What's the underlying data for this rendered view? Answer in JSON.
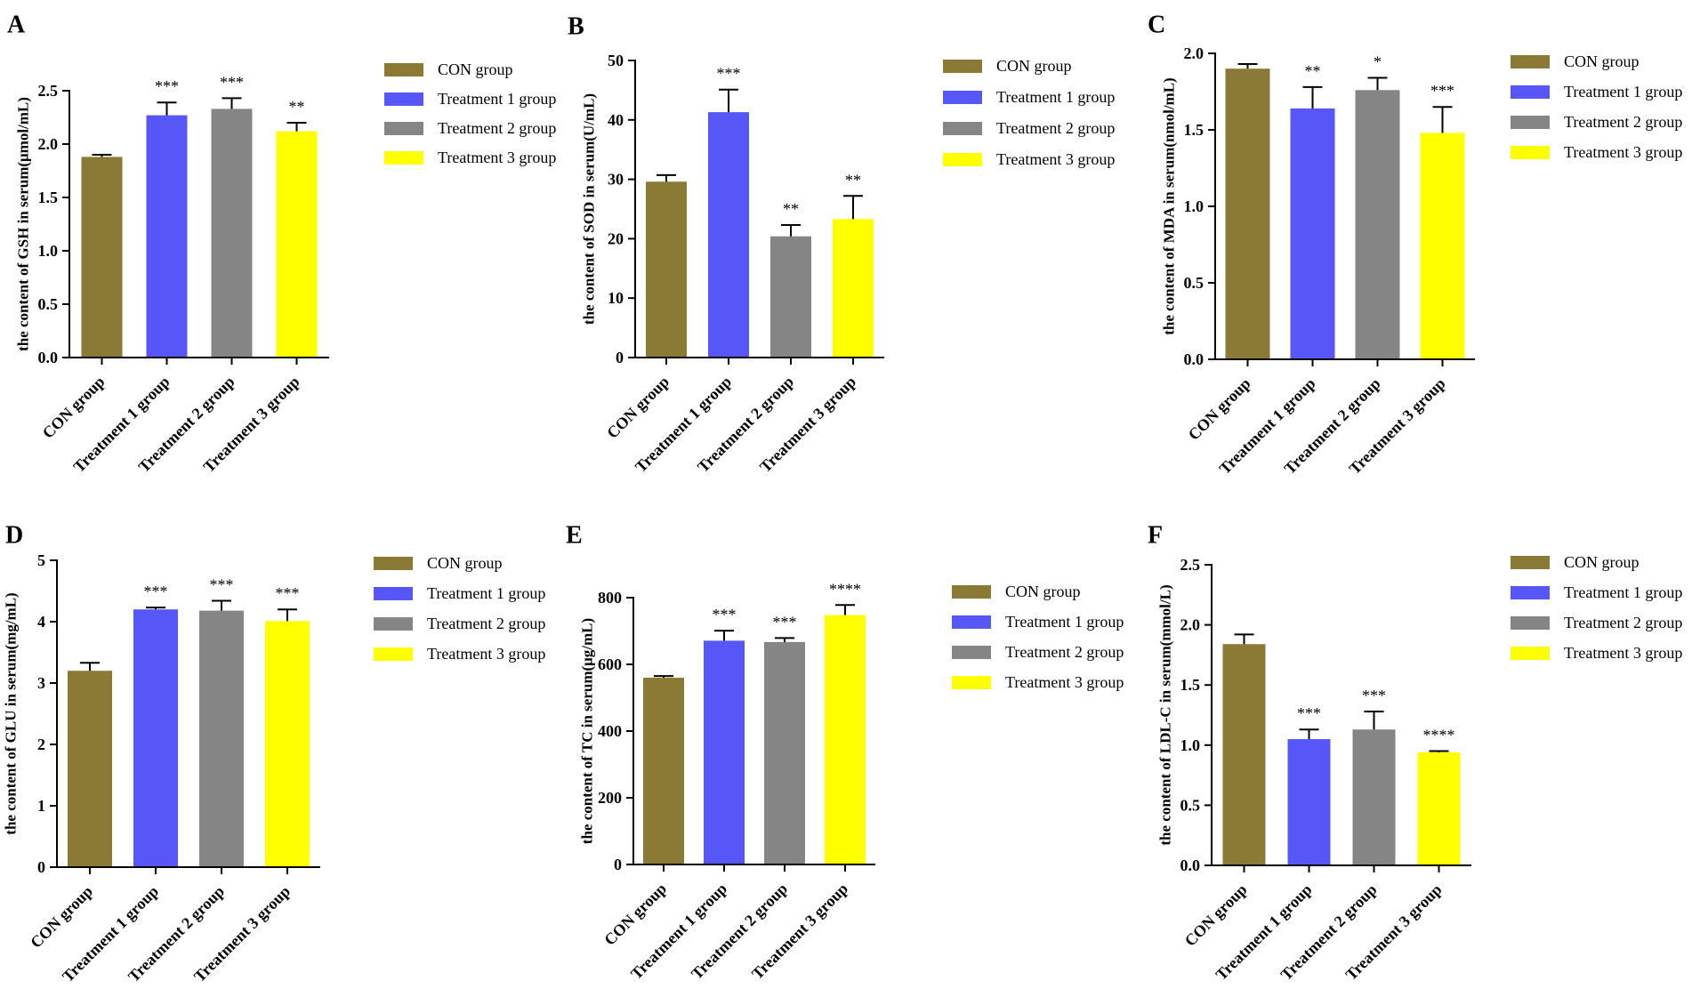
{
  "colors": {
    "con": "#8B7A36",
    "t1": "#5757F8",
    "t2": "#858585",
    "t3": "#FFFF00",
    "axis": "#000000"
  },
  "group_colors": [
    "#8B7A36",
    "#5757F8",
    "#858585",
    "#FFFF00"
  ],
  "chart_data": [
    {
      "type": "bar",
      "panel_label": "A",
      "ylabel": "the content of GSH in serum(μmol/mL)",
      "categories": [
        "CON group",
        "Treatment 1 group",
        "Treatment 2 group",
        "Treatment 3 group"
      ],
      "values": [
        1.88,
        2.27,
        2.33,
        2.12
      ],
      "errors": [
        0.02,
        0.12,
        0.1,
        0.08
      ],
      "significance": [
        "",
        "***",
        "***",
        "**"
      ],
      "ylim": [
        0,
        2.5
      ],
      "yticks": [
        0,
        0.5,
        1.0,
        1.5,
        2.0,
        2.5
      ],
      "ytick_labels": [
        "0.0",
        "0.5",
        "1.0",
        "1.5",
        "2.0",
        "2.5"
      ],
      "legend": [
        "CON group",
        "Treatment 1 group",
        "Treatment 2 group",
        "Treatment 3 group"
      ]
    },
    {
      "type": "bar",
      "panel_label": "B",
      "ylabel": "the content of SOD in serum(U/mL)",
      "categories": [
        "CON group",
        "Treatment 1 group",
        "Treatment 2 group",
        "Treatment 3 group"
      ],
      "values": [
        29.6,
        41.3,
        20.4,
        23.3
      ],
      "errors": [
        1.1,
        3.8,
        1.9,
        3.9
      ],
      "significance": [
        "",
        "***",
        "**",
        "**"
      ],
      "ylim": [
        0,
        50
      ],
      "yticks": [
        0,
        10,
        20,
        30,
        40,
        50
      ],
      "ytick_labels": [
        "0",
        "10",
        "20",
        "30",
        "40",
        "50"
      ],
      "legend": [
        "CON group",
        "Treatment 1 group",
        "Treatment 2 group",
        "Treatment 3 group"
      ]
    },
    {
      "type": "bar",
      "panel_label": "C",
      "ylabel": "the content of MDA in serum(nmol/mL)",
      "categories": [
        "CON group",
        "Treatment 1 group",
        "Treatment 2 group",
        "Treatment 3 group"
      ],
      "values": [
        1.9,
        1.64,
        1.76,
        1.48
      ],
      "errors": [
        0.03,
        0.14,
        0.08,
        0.17
      ],
      "significance": [
        "",
        "**",
        "*",
        "***"
      ],
      "ylim": [
        0,
        2.0
      ],
      "yticks": [
        0,
        0.5,
        1.0,
        1.5,
        2.0
      ],
      "ytick_labels": [
        "0.0",
        "0.5",
        "1.0",
        "1.5",
        "2.0"
      ],
      "legend": [
        "CON group",
        "Treatment 1 group",
        "Treatment 2 group",
        "Treatment 3 group"
      ]
    },
    {
      "type": "bar",
      "panel_label": "D",
      "ylabel": "the content of GLU in serum(mg/mL)",
      "categories": [
        "CON group",
        "Treatment 1 group",
        "Treatment 2 group",
        "Treatment 3 group"
      ],
      "values": [
        3.2,
        4.2,
        4.18,
        4.01
      ],
      "errors": [
        0.13,
        0.03,
        0.16,
        0.19
      ],
      "significance": [
        "",
        "***",
        "***",
        "***"
      ],
      "ylim": [
        0,
        5
      ],
      "yticks": [
        0,
        1,
        2,
        3,
        4,
        5
      ],
      "ytick_labels": [
        "0",
        "1",
        "2",
        "3",
        "4",
        "5"
      ],
      "legend": [
        "CON group",
        "Treatment 1 group",
        "Treatment 2 group",
        "Treatment 3 group"
      ]
    },
    {
      "type": "bar",
      "panel_label": "E",
      "ylabel": "the content of TC in serum(μg/mL)",
      "categories": [
        "CON group",
        "Treatment 1 group",
        "Treatment 2 group",
        "Treatment 3 group"
      ],
      "values": [
        560,
        671,
        667,
        748
      ],
      "errors": [
        5,
        30,
        12,
        30
      ],
      "significance": [
        "",
        "***",
        "***",
        "****"
      ],
      "ylim": [
        0,
        800
      ],
      "yticks": [
        0,
        200,
        400,
        600,
        800
      ],
      "ytick_labels": [
        "0",
        "200",
        "400",
        "600",
        "800"
      ],
      "legend": [
        "CON group",
        "Treatment 1 group",
        "Treatment 2 group",
        "Treatment 3 group"
      ]
    },
    {
      "type": "bar",
      "panel_label": "F",
      "ylabel": "the content of LDL-C in serum(mmol/L)",
      "categories": [
        "CON group",
        "Treatment 1 group",
        "Treatment 2 group",
        "Treatment 3 group"
      ],
      "values": [
        1.84,
        1.05,
        1.13,
        0.94
      ],
      "errors": [
        0.08,
        0.08,
        0.15,
        0.01
      ],
      "significance": [
        "",
        "***",
        "***",
        "****"
      ],
      "ylim": [
        0,
        2.5
      ],
      "yticks": [
        0,
        0.5,
        1.0,
        1.5,
        2.0,
        2.5
      ],
      "ytick_labels": [
        "0.0",
        "0.5",
        "1.0",
        "1.5",
        "2.0",
        "2.5"
      ],
      "legend": [
        "CON group",
        "Treatment 1 group",
        "Treatment 2 group",
        "Treatment 3 group"
      ]
    }
  ]
}
